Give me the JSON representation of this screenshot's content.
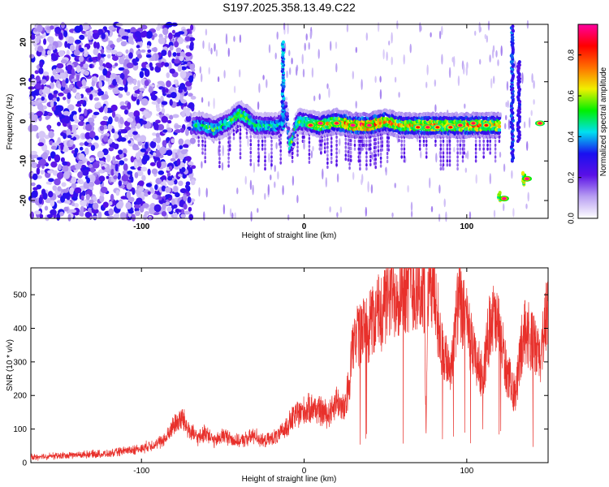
{
  "figure_title": "S197.2025.358.13.49.C22",
  "chart_data": [
    {
      "type": "heatmap",
      "title": "S197.2025.358.13.49.C22",
      "xlabel": "Height of straight line (km)",
      "ylabel": "Frequency (Hz)",
      "xlim": [
        -168,
        150
      ],
      "ylim": [
        -24.5,
        24.5
      ],
      "x_ticks": [
        -100,
        0,
        100
      ],
      "x_tick_labels": [
        "-100",
        "0",
        "100"
      ],
      "y_ticks": [
        -20,
        -10,
        0,
        10,
        20
      ],
      "y_tick_labels": [
        "-20",
        "-10",
        "0",
        "10",
        "20"
      ],
      "colorbar": {
        "label": "Normalized spectral amplitude",
        "range": [
          0.0,
          0.95
        ],
        "ticks": [
          0.0,
          0.2,
          0.4,
          0.6,
          0.8
        ],
        "tick_labels": [
          "0.0",
          "0.2",
          "0.4",
          "0.6",
          "0.8"
        ],
        "colors": [
          "#ffffff",
          "#b9a0f2",
          "#5a10e6",
          "#1a10f0",
          "#00e0f0",
          "#00f000",
          "#f0f000",
          "#ff7000",
          "#ff0000",
          "#ff00a0"
        ]
      },
      "noise_region": {
        "x_range": [
          -168,
          -68
        ],
        "y_range": [
          -24.5,
          24.5
        ],
        "level": 0.22
      },
      "ridge_x": [
        -68,
        -62,
        -55,
        -50,
        -45,
        -40,
        -35,
        -30,
        -25,
        -20,
        -16,
        -13,
        -11,
        -9,
        -7,
        -5,
        -3,
        0,
        10,
        20,
        30,
        40,
        50,
        60,
        70,
        80,
        90,
        100,
        110,
        120
      ],
      "ridge_freq": [
        -1,
        -1,
        -2,
        -1,
        0,
        2,
        1,
        -1,
        -1,
        -1,
        -1,
        0,
        3,
        -6,
        -5,
        -1,
        0,
        0,
        -1,
        0,
        -1,
        -1,
        0,
        -1,
        -1,
        -1,
        -1,
        -1,
        -1,
        -1
      ],
      "ridge_amp": [
        0.45,
        0.5,
        0.55,
        0.5,
        0.55,
        0.6,
        0.55,
        0.5,
        0.5,
        0.5,
        0.45,
        0.4,
        0.35,
        0.5,
        0.55,
        0.5,
        0.55,
        0.55,
        0.65,
        0.7,
        0.85,
        0.85,
        0.75,
        0.7,
        0.75,
        0.75,
        0.7,
        0.75,
        0.75,
        0.7
      ],
      "hot_spots": [
        {
          "x": 4,
          "freq": -1,
          "amp": 0.9
        },
        {
          "x": 10,
          "freq": -0.5,
          "amp": 0.95
        },
        {
          "x": 20,
          "freq": -0.5,
          "amp": 0.9
        },
        {
          "x": 30,
          "freq": -1,
          "amp": 0.95
        },
        {
          "x": 40,
          "freq": -1,
          "amp": 0.95
        },
        {
          "x": 70,
          "freq": -1.5,
          "amp": 0.85
        },
        {
          "x": 76,
          "freq": -1.5,
          "amp": 0.9
        },
        {
          "x": 82,
          "freq": -1.5,
          "amp": 0.85
        },
        {
          "x": 90,
          "freq": -1.5,
          "amp": 0.85
        },
        {
          "x": 96,
          "freq": -1,
          "amp": 0.9
        },
        {
          "x": 104,
          "freq": -0.5,
          "amp": 0.9
        },
        {
          "x": 112,
          "freq": -1,
          "amp": 0.85
        },
        {
          "x": 123,
          "freq": -19.5,
          "amp": 0.95
        },
        {
          "x": 137,
          "freq": -14.5,
          "amp": 0.95
        },
        {
          "x": 145,
          "freq": -0.5,
          "amp": 0.9
        }
      ],
      "features": [
        {
          "x": -13,
          "f_from": -2,
          "f_to": 20,
          "amp": 0.4
        },
        {
          "x": 128,
          "f_from": -10,
          "f_to": 24,
          "amp": 0.35
        },
        {
          "x": 132,
          "f_from": -5,
          "f_to": 15,
          "amp": 0.3
        },
        {
          "x": 120,
          "f_from": -20,
          "f_to": -18,
          "amp": 0.6
        },
        {
          "x": 135,
          "f_from": -16,
          "f_to": -13,
          "amp": 0.6
        }
      ]
    },
    {
      "type": "line",
      "xlabel": "Height of straight line (km)",
      "ylabel": "SNR (10 * v/v)",
      "xlim": [
        -168,
        150
      ],
      "ylim": [
        0,
        580
      ],
      "x_ticks": [
        -100,
        0,
        100
      ],
      "x_tick_labels": [
        "-100",
        "0",
        "100"
      ],
      "y_ticks": [
        0,
        100,
        200,
        300,
        400,
        500
      ],
      "y_tick_labels": [
        "0",
        "100",
        "200",
        "300",
        "400",
        "500"
      ],
      "color": "#e8302b",
      "series": [
        {
          "name": "SNR",
          "x": [
            -168,
            -160,
            -150,
            -140,
            -130,
            -120,
            -110,
            -100,
            -95,
            -90,
            -85,
            -80,
            -75,
            -70,
            -65,
            -60,
            -55,
            -50,
            -45,
            -40,
            -35,
            -30,
            -25,
            -20,
            -15,
            -10,
            -5,
            0,
            5,
            10,
            15,
            20,
            25,
            28,
            30,
            32,
            35,
            40,
            45,
            50,
            55,
            60,
            65,
            70,
            74,
            75,
            76,
            78,
            80,
            85,
            90,
            95,
            100,
            105,
            110,
            115,
            120,
            125,
            130,
            135,
            140,
            145,
            150
          ],
          "y": [
            15,
            18,
            20,
            22,
            25,
            25,
            35,
            40,
            50,
            55,
            70,
            110,
            130,
            90,
            70,
            90,
            60,
            80,
            70,
            60,
            70,
            80,
            60,
            70,
            80,
            110,
            140,
            150,
            160,
            150,
            140,
            180,
            150,
            250,
            340,
            360,
            370,
            400,
            430,
            460,
            490,
            510,
            520,
            500,
            490,
            60,
            480,
            520,
            500,
            320,
            270,
            470,
            400,
            300,
            250,
            430,
            380,
            250,
            200,
            390,
            350,
            300,
            470
          ],
          "values_rounded_to": 10
        }
      ]
    }
  ]
}
